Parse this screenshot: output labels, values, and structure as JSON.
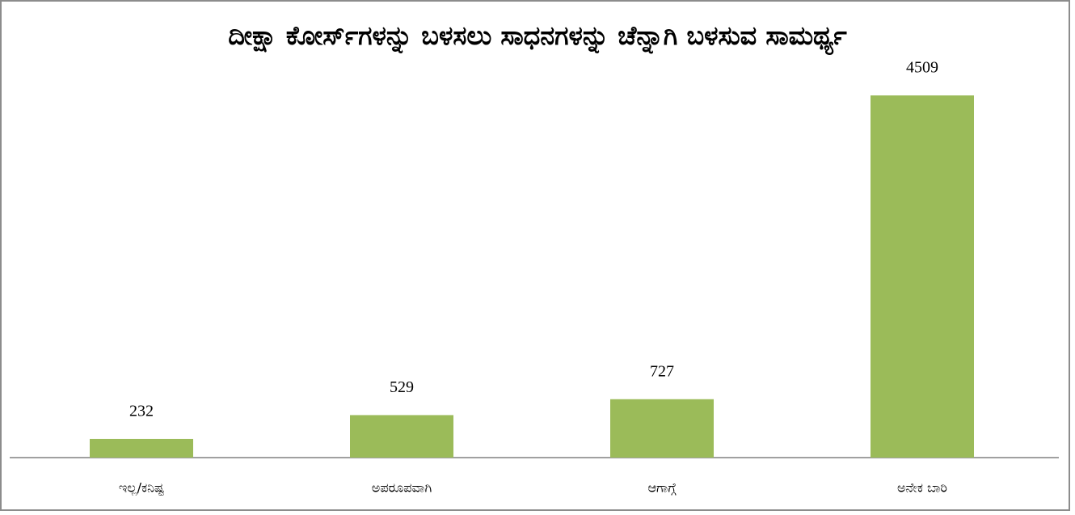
{
  "chart_data": {
    "type": "bar",
    "title": "ದೀಕ್ಷಾ ಕೋರ್ಸ್‌ಗಳನ್ನು ಬಳಸಲು ಸಾಧನಗಳನ್ನು ಚೆನ್ನಾಗಿ ಬಳಸುವ ಸಾಮರ್ಥ್ಯ",
    "categories": [
      "ಇಲ್ಲ/ಕನಿಷ್ಟ",
      "ಅಪರೂಪವಾಗಿ",
      "ಆಗಾಗ್ಗೆ",
      "ಅನೇಕ ಬಾರಿ"
    ],
    "values": [
      232,
      529,
      727,
      4509
    ],
    "color": "#9bbb59"
  }
}
